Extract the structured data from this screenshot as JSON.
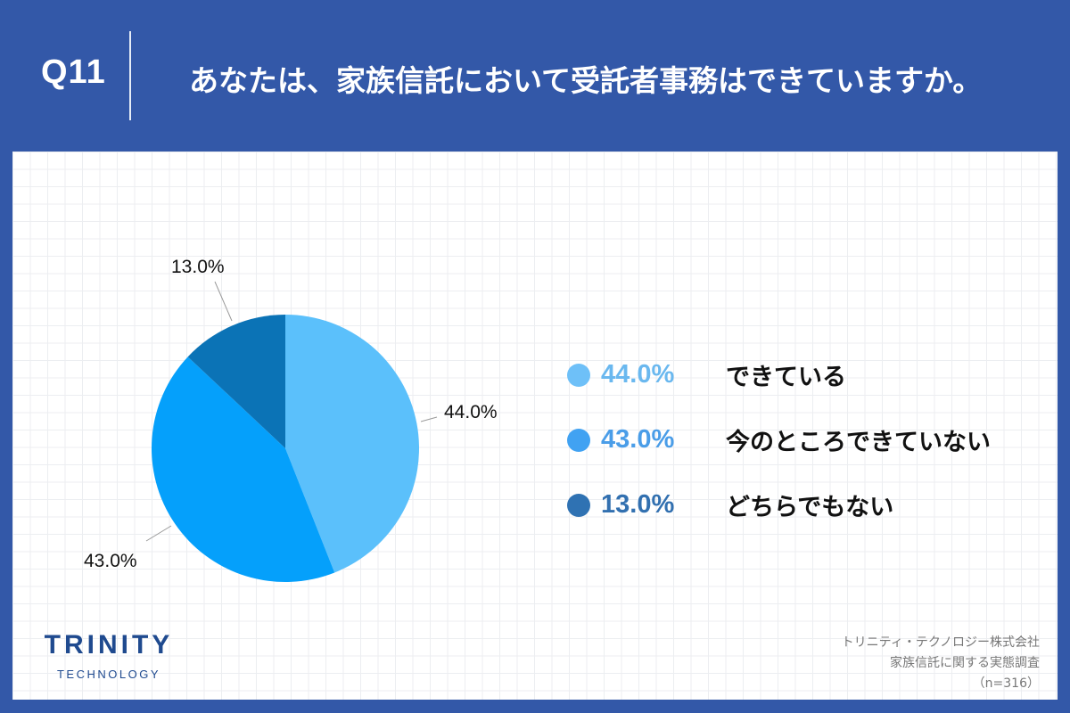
{
  "header": {
    "question_number": "Q11",
    "title": "あなたは、家族信託において受託者事務はできていますか。"
  },
  "chart_data": {
    "type": "pie",
    "title": "あなたは、家族信託において受託者事務はできていますか。",
    "categories": [
      "できている",
      "今のところできていない",
      "どちらでもない"
    ],
    "values": [
      44.0,
      43.0,
      13.0
    ],
    "unit": "%",
    "colors": [
      "#5bc0fb",
      "#05a0fb",
      "#0b73b6"
    ],
    "data_labels": [
      "44.0%",
      "43.0%",
      "13.0%"
    ],
    "start_angle": "12 o'clock, clockwise",
    "legend_position": "right",
    "sample_size": "n=316"
  },
  "pie_labels": {
    "slice0": "44.0%",
    "slice1": "43.0%",
    "slice2": "13.0%"
  },
  "legend": {
    "items": [
      {
        "pct": "44.0%",
        "label": "できている",
        "color": "#6ec0f8",
        "text_color": "#6ab8ef"
      },
      {
        "pct": "43.0%",
        "label": "今のところできていない",
        "color": "#41a2f2",
        "text_color": "#4a9de8"
      },
      {
        "pct": "13.0%",
        "label": "どちらでもない",
        "color": "#2f72b3",
        "text_color": "#3270b0"
      }
    ]
  },
  "logo": {
    "main": "TRINITY",
    "sub": "TECHNOLOGY"
  },
  "source": {
    "line1": "トリニティ・テクノロジー株式会社",
    "line2": "家族信託に関する実態調査",
    "line3": "（n=316）"
  },
  "colors": {
    "background": "#3358a8",
    "panel": "#ffffff",
    "logo": "#1f4a8f"
  }
}
